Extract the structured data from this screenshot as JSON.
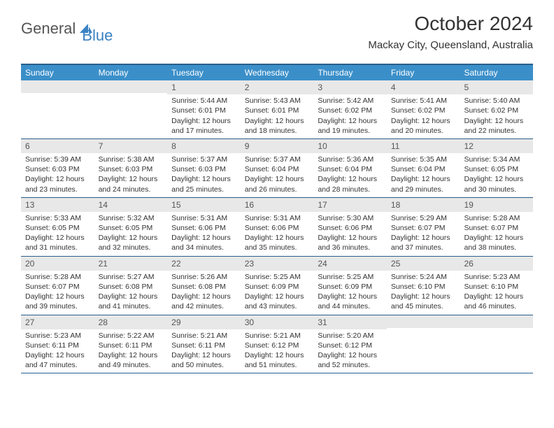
{
  "logo": {
    "part1": "General",
    "part2": "Blue"
  },
  "title": "October 2024",
  "location": "Mackay City, Queensland, Australia",
  "weekdays": [
    "Sunday",
    "Monday",
    "Tuesday",
    "Wednesday",
    "Thursday",
    "Friday",
    "Saturday"
  ],
  "colors": {
    "header_bg": "#3b8fc9",
    "border": "#2b5f8a",
    "daynum_bg": "#e8e8e8",
    "logo_gray": "#555555",
    "logo_blue": "#3b82c4"
  },
  "weeks": [
    [
      {
        "n": "",
        "sr": "",
        "ss": "",
        "dl": ""
      },
      {
        "n": "",
        "sr": "",
        "ss": "",
        "dl": ""
      },
      {
        "n": "1",
        "sr": "Sunrise: 5:44 AM",
        "ss": "Sunset: 6:01 PM",
        "dl": "Daylight: 12 hours and 17 minutes."
      },
      {
        "n": "2",
        "sr": "Sunrise: 5:43 AM",
        "ss": "Sunset: 6:01 PM",
        "dl": "Daylight: 12 hours and 18 minutes."
      },
      {
        "n": "3",
        "sr": "Sunrise: 5:42 AM",
        "ss": "Sunset: 6:02 PM",
        "dl": "Daylight: 12 hours and 19 minutes."
      },
      {
        "n": "4",
        "sr": "Sunrise: 5:41 AM",
        "ss": "Sunset: 6:02 PM",
        "dl": "Daylight: 12 hours and 20 minutes."
      },
      {
        "n": "5",
        "sr": "Sunrise: 5:40 AM",
        "ss": "Sunset: 6:02 PM",
        "dl": "Daylight: 12 hours and 22 minutes."
      }
    ],
    [
      {
        "n": "6",
        "sr": "Sunrise: 5:39 AM",
        "ss": "Sunset: 6:03 PM",
        "dl": "Daylight: 12 hours and 23 minutes."
      },
      {
        "n": "7",
        "sr": "Sunrise: 5:38 AM",
        "ss": "Sunset: 6:03 PM",
        "dl": "Daylight: 12 hours and 24 minutes."
      },
      {
        "n": "8",
        "sr": "Sunrise: 5:37 AM",
        "ss": "Sunset: 6:03 PM",
        "dl": "Daylight: 12 hours and 25 minutes."
      },
      {
        "n": "9",
        "sr": "Sunrise: 5:37 AM",
        "ss": "Sunset: 6:04 PM",
        "dl": "Daylight: 12 hours and 26 minutes."
      },
      {
        "n": "10",
        "sr": "Sunrise: 5:36 AM",
        "ss": "Sunset: 6:04 PM",
        "dl": "Daylight: 12 hours and 28 minutes."
      },
      {
        "n": "11",
        "sr": "Sunrise: 5:35 AM",
        "ss": "Sunset: 6:04 PM",
        "dl": "Daylight: 12 hours and 29 minutes."
      },
      {
        "n": "12",
        "sr": "Sunrise: 5:34 AM",
        "ss": "Sunset: 6:05 PM",
        "dl": "Daylight: 12 hours and 30 minutes."
      }
    ],
    [
      {
        "n": "13",
        "sr": "Sunrise: 5:33 AM",
        "ss": "Sunset: 6:05 PM",
        "dl": "Daylight: 12 hours and 31 minutes."
      },
      {
        "n": "14",
        "sr": "Sunrise: 5:32 AM",
        "ss": "Sunset: 6:05 PM",
        "dl": "Daylight: 12 hours and 32 minutes."
      },
      {
        "n": "15",
        "sr": "Sunrise: 5:31 AM",
        "ss": "Sunset: 6:06 PM",
        "dl": "Daylight: 12 hours and 34 minutes."
      },
      {
        "n": "16",
        "sr": "Sunrise: 5:31 AM",
        "ss": "Sunset: 6:06 PM",
        "dl": "Daylight: 12 hours and 35 minutes."
      },
      {
        "n": "17",
        "sr": "Sunrise: 5:30 AM",
        "ss": "Sunset: 6:06 PM",
        "dl": "Daylight: 12 hours and 36 minutes."
      },
      {
        "n": "18",
        "sr": "Sunrise: 5:29 AM",
        "ss": "Sunset: 6:07 PM",
        "dl": "Daylight: 12 hours and 37 minutes."
      },
      {
        "n": "19",
        "sr": "Sunrise: 5:28 AM",
        "ss": "Sunset: 6:07 PM",
        "dl": "Daylight: 12 hours and 38 minutes."
      }
    ],
    [
      {
        "n": "20",
        "sr": "Sunrise: 5:28 AM",
        "ss": "Sunset: 6:07 PM",
        "dl": "Daylight: 12 hours and 39 minutes."
      },
      {
        "n": "21",
        "sr": "Sunrise: 5:27 AM",
        "ss": "Sunset: 6:08 PM",
        "dl": "Daylight: 12 hours and 41 minutes."
      },
      {
        "n": "22",
        "sr": "Sunrise: 5:26 AM",
        "ss": "Sunset: 6:08 PM",
        "dl": "Daylight: 12 hours and 42 minutes."
      },
      {
        "n": "23",
        "sr": "Sunrise: 5:25 AM",
        "ss": "Sunset: 6:09 PM",
        "dl": "Daylight: 12 hours and 43 minutes."
      },
      {
        "n": "24",
        "sr": "Sunrise: 5:25 AM",
        "ss": "Sunset: 6:09 PM",
        "dl": "Daylight: 12 hours and 44 minutes."
      },
      {
        "n": "25",
        "sr": "Sunrise: 5:24 AM",
        "ss": "Sunset: 6:10 PM",
        "dl": "Daylight: 12 hours and 45 minutes."
      },
      {
        "n": "26",
        "sr": "Sunrise: 5:23 AM",
        "ss": "Sunset: 6:10 PM",
        "dl": "Daylight: 12 hours and 46 minutes."
      }
    ],
    [
      {
        "n": "27",
        "sr": "Sunrise: 5:23 AM",
        "ss": "Sunset: 6:11 PM",
        "dl": "Daylight: 12 hours and 47 minutes."
      },
      {
        "n": "28",
        "sr": "Sunrise: 5:22 AM",
        "ss": "Sunset: 6:11 PM",
        "dl": "Daylight: 12 hours and 49 minutes."
      },
      {
        "n": "29",
        "sr": "Sunrise: 5:21 AM",
        "ss": "Sunset: 6:11 PM",
        "dl": "Daylight: 12 hours and 50 minutes."
      },
      {
        "n": "30",
        "sr": "Sunrise: 5:21 AM",
        "ss": "Sunset: 6:12 PM",
        "dl": "Daylight: 12 hours and 51 minutes."
      },
      {
        "n": "31",
        "sr": "Sunrise: 5:20 AM",
        "ss": "Sunset: 6:12 PM",
        "dl": "Daylight: 12 hours and 52 minutes."
      },
      {
        "n": "",
        "sr": "",
        "ss": "",
        "dl": ""
      },
      {
        "n": "",
        "sr": "",
        "ss": "",
        "dl": ""
      }
    ]
  ]
}
